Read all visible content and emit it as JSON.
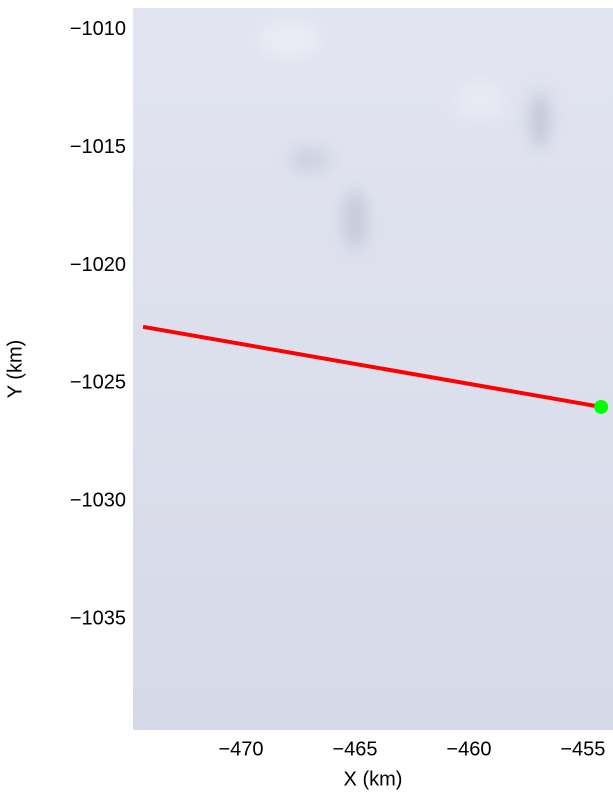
{
  "chart_data": {
    "type": "line",
    "xlabel": "X (km)",
    "ylabel": "Y (km)",
    "xlim": [
      -474.74,
      -453.68
    ],
    "ylim": [
      -1039.71,
      -1009.07
    ],
    "xticks": [
      {
        "value": -470,
        "label": "−470"
      },
      {
        "value": -465,
        "label": "−465"
      },
      {
        "value": -460,
        "label": "−460"
      },
      {
        "value": -455,
        "label": "−455"
      }
    ],
    "yticks": [
      {
        "value": -1010,
        "label": "−1010"
      },
      {
        "value": -1015,
        "label": "−1015"
      },
      {
        "value": -1020,
        "label": "−1020"
      },
      {
        "value": -1025,
        "label": "−1025"
      },
      {
        "value": -1030,
        "label": "−1030"
      },
      {
        "value": -1035,
        "label": "−1035"
      }
    ],
    "series": [
      {
        "type": "line",
        "color": "#ff0000",
        "x": [
          -474.3,
          -454.2
        ],
        "values": [
          -1022.6,
          -1026.0
        ]
      },
      {
        "type": "scatter",
        "color": "#00ff00",
        "x": [
          -454.2
        ],
        "values": [
          -1026.0
        ]
      }
    ]
  }
}
